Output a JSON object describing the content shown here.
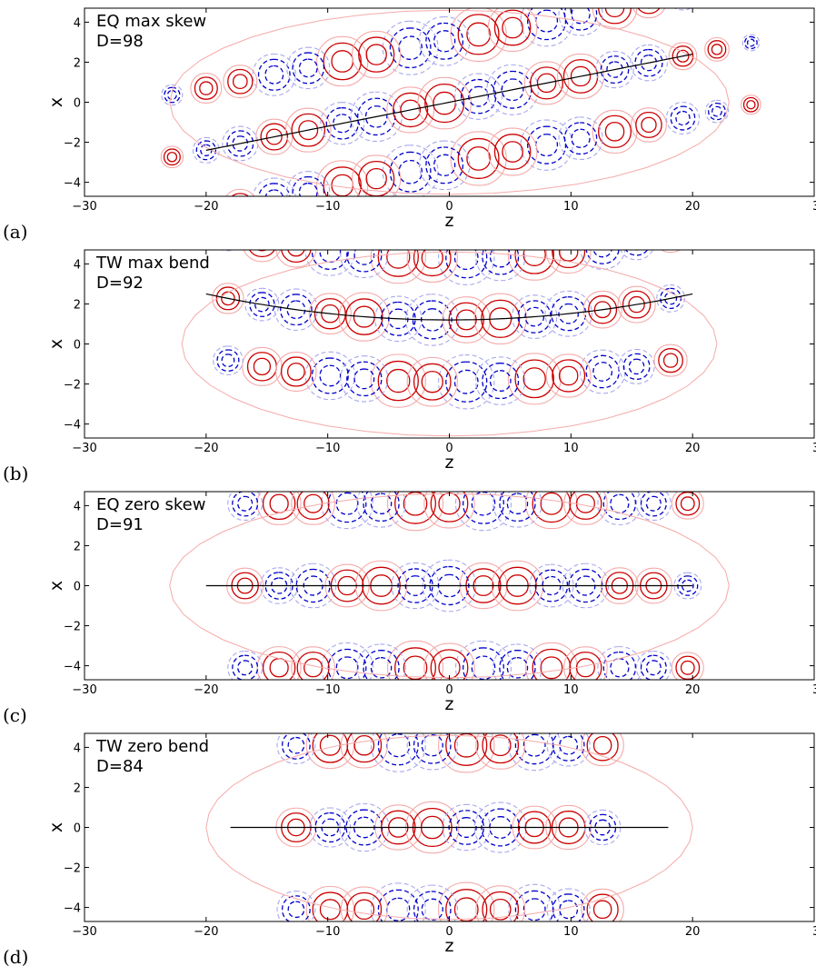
{
  "chart_data": [
    {
      "type": "contour",
      "panel_letter": "(a)",
      "title": "EQ max skew",
      "annotation": "D=98",
      "xlabel": "z",
      "ylabel": "x",
      "xlim": [
        -30,
        30
      ],
      "ylim": [
        -4.7,
        4.7
      ],
      "xticks": [
        -30,
        -20,
        -10,
        0,
        10,
        20,
        30
      ],
      "xtick_labels": [
        "−30",
        "−20",
        "−10",
        "0",
        "10",
        "20",
        "30"
      ],
      "yticks": [
        -4,
        -2,
        0,
        2,
        4
      ],
      "ytick_labels": [
        "−4",
        "−2",
        "0",
        "2",
        "4"
      ],
      "grid": false,
      "cell_period": 5.6,
      "cells_z": [
        -22.8,
        -17.2,
        -11.6,
        -6.0,
        -0.4,
        5.2,
        10.8,
        16.4,
        22.0
      ],
      "row_offsets": [
        -3.1,
        0,
        3.1
      ],
      "center_curve": {
        "shape": "line",
        "z_range": [
          -20,
          20
        ],
        "x_at_ends": [
          -2.4,
          2.4
        ],
        "x_at_center": 0
      },
      "skew": 0.12,
      "bend": 0,
      "envelope_half_width": 20,
      "levels": {
        "positive": {
          "color": "#cc0000",
          "outer_color": "#f5aaaa",
          "style": "solid"
        },
        "negative": {
          "color": "#0000cc",
          "outer_color": "#a8a8ee",
          "style": "dashed"
        }
      },
      "center_line_color": "#000000"
    },
    {
      "type": "contour",
      "panel_letter": "(b)",
      "title": "TW max bend",
      "annotation": "D=92",
      "xlabel": "z",
      "ylabel": "x",
      "xlim": [
        -30,
        30
      ],
      "ylim": [
        -4.7,
        4.7
      ],
      "xticks": [
        -30,
        -20,
        -10,
        0,
        10,
        20,
        30
      ],
      "xtick_labels": [
        "−30",
        "−20",
        "−10",
        "0",
        "10",
        "20",
        "30"
      ],
      "yticks": [
        -4,
        -2,
        0,
        2,
        4
      ],
      "ytick_labels": [
        "−4",
        "−2",
        "0",
        "2",
        "4"
      ],
      "grid": false,
      "cell_period": 5.6,
      "cells_z": [
        -18.2,
        -12.6,
        -7.0,
        -1.4,
        4.2,
        9.8,
        15.4
      ],
      "row_offsets": [
        -3.1,
        0,
        3.1
      ],
      "center_curve": {
        "shape": "parabola",
        "z_range": [
          -20,
          20
        ],
        "x_at_ends": [
          2.5,
          2.5
        ],
        "x_at_center": 1.2
      },
      "skew": 0,
      "bend": 0.00325,
      "envelope_half_width": 19,
      "levels": {
        "positive": {
          "color": "#cc0000",
          "outer_color": "#f5aaaa",
          "style": "solid"
        },
        "negative": {
          "color": "#0000cc",
          "outer_color": "#a8a8ee",
          "style": "dashed"
        }
      },
      "center_line_color": "#000000"
    },
    {
      "type": "contour",
      "panel_letter": "(c)",
      "title": "EQ zero skew",
      "annotation": "D=91",
      "xlabel": "z",
      "ylabel": "x",
      "xlim": [
        -30,
        30
      ],
      "ylim": [
        -4.7,
        4.7
      ],
      "xticks": [
        -30,
        -20,
        -10,
        0,
        10,
        20,
        30
      ],
      "xtick_labels": [
        "−30",
        "−20",
        "−10",
        "0",
        "10",
        "20",
        "30"
      ],
      "yticks": [
        -4,
        -2,
        0,
        2,
        4
      ],
      "ytick_labels": [
        "−4",
        "−2",
        "0",
        "2",
        "4"
      ],
      "grid": false,
      "cell_period": 5.6,
      "cells_z": [
        -16.8,
        -11.2,
        -5.6,
        0,
        5.6,
        11.2,
        16.8
      ],
      "row_offsets": [
        -4.1,
        0,
        4.1
      ],
      "center_curve": {
        "shape": "line",
        "z_range": [
          -20,
          20
        ],
        "x_at_ends": [
          0,
          0
        ],
        "x_at_center": 0
      },
      "skew": 0,
      "bend": 0,
      "envelope_half_width": 20,
      "levels": {
        "positive": {
          "color": "#cc0000",
          "outer_color": "#f5aaaa",
          "style": "solid"
        },
        "negative": {
          "color": "#0000cc",
          "outer_color": "#a8a8ee",
          "style": "dashed"
        }
      },
      "center_line_color": "#000000"
    },
    {
      "type": "contour",
      "panel_letter": "(d)",
      "title": "TW zero bend",
      "annotation": "D=84",
      "xlabel": "z",
      "ylabel": "x",
      "xlim": [
        -30,
        30
      ],
      "ylim": [
        -4.7,
        4.7
      ],
      "xticks": [
        -30,
        -20,
        -10,
        0,
        10,
        20,
        30
      ],
      "xtick_labels": [
        "−30",
        "−20",
        "−10",
        "0",
        "10",
        "20",
        "30"
      ],
      "yticks": [
        -4,
        -2,
        0,
        2,
        4
      ],
      "ytick_labels": [
        "−4",
        "−2",
        "0",
        "2",
        "4"
      ],
      "grid": false,
      "cell_period": 5.6,
      "cells_z": [
        -12.6,
        -7.0,
        -1.4,
        4.2,
        9.8
      ],
      "row_offsets": [
        -4.1,
        0,
        4.1
      ],
      "center_curve": {
        "shape": "line",
        "z_range": [
          -18,
          18
        ],
        "x_at_ends": [
          0,
          0
        ],
        "x_at_center": 0
      },
      "skew": 0,
      "bend": 0,
      "envelope_half_width": 17,
      "levels": {
        "positive": {
          "color": "#cc0000",
          "outer_color": "#f5aaaa",
          "style": "solid"
        },
        "negative": {
          "color": "#0000cc",
          "outer_color": "#a8a8ee",
          "style": "dashed"
        }
      },
      "center_line_color": "#000000"
    }
  ]
}
